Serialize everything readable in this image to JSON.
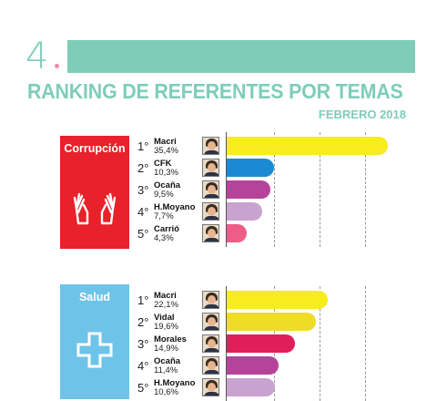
{
  "header": {
    "section_number": "4",
    "title": "RANKING DE REFERENTES POR TEMAS",
    "subtitle": "FEBRERO 2018",
    "accent_color": "#7fcdb9"
  },
  "chart_data": [
    {
      "type": "bar",
      "orientation": "horizontal",
      "category": "Corrupción",
      "category_color": "#e8212a",
      "icon": "hands-up-icon",
      "grid": true,
      "rows": [
        {
          "rank": "1°",
          "name": "Macri",
          "value_label": "35,4%",
          "value": 35.4,
          "color": "#f7ec1e"
        },
        {
          "rank": "2°",
          "name": "CFK",
          "value_label": "10,3%",
          "value": 10.3,
          "color": "#1a8ad4"
        },
        {
          "rank": "3°",
          "name": "Ocaña",
          "value_label": "9,5%",
          "value": 9.5,
          "color": "#b5439a"
        },
        {
          "rank": "4°",
          "name": "H.Moyano",
          "value_label": "7,7%",
          "value": 7.7,
          "color": "#c9a3cf"
        },
        {
          "rank": "5°",
          "name": "Carrió",
          "value_label": "4,3%",
          "value": 4.3,
          "color": "#ed5d87"
        }
      ]
    },
    {
      "type": "bar",
      "orientation": "horizontal",
      "category": "Salud",
      "category_color": "#6ec4e8",
      "icon": "cross-icon",
      "grid": true,
      "rows": [
        {
          "rank": "1°",
          "name": "Macri",
          "value_label": "22,1%",
          "value": 22.1,
          "color": "#f7ec1e"
        },
        {
          "rank": "2°",
          "name": "Vidal",
          "value_label": "19,6%",
          "value": 19.6,
          "color": "#eedc26"
        },
        {
          "rank": "3°",
          "name": "Morales",
          "value_label": "14,9%",
          "value": 14.9,
          "color": "#e01e5a"
        },
        {
          "rank": "4°",
          "name": "Ocaña",
          "value_label": "11,4%",
          "value": 11.4,
          "color": "#b5439a"
        },
        {
          "rank": "5°",
          "name": "H.Moyano",
          "value_label": "10,6%",
          "value": 10.6,
          "color": "#c9a3cf"
        }
      ]
    }
  ]
}
